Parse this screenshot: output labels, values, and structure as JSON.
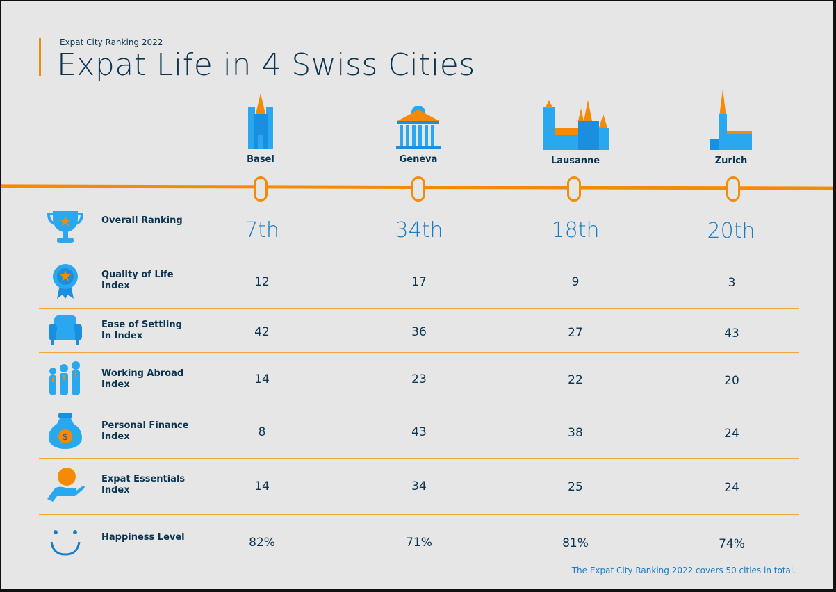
{
  "header": {
    "subtitle": "Expat City Ranking 2022",
    "title": "Expat Life in 4 Swiss Cities"
  },
  "colors": {
    "accent": "#f58a07",
    "primary_blue": "#1a7dc4",
    "icon_blue": "#29a8f0",
    "text": "#0b3550"
  },
  "cities": [
    {
      "name": "Basel",
      "icon": "basel-cathedral-icon"
    },
    {
      "name": "Geneva",
      "icon": "geneva-temple-icon"
    },
    {
      "name": "Lausanne",
      "icon": "lausanne-cathedral-icon"
    },
    {
      "name": "Zurich",
      "icon": "zurich-church-icon"
    }
  ],
  "rows": [
    {
      "label": "Overall Ranking",
      "icon": "trophy-icon",
      "values": [
        "7th",
        "34th",
        "18th",
        "20th"
      ]
    },
    {
      "label": "Quality of Life Index",
      "icon": "award-rosette-icon",
      "values": [
        "12",
        "17",
        "9",
        "3"
      ]
    },
    {
      "label": "Ease of Settling In Index",
      "icon": "armchair-icon",
      "values": [
        "42",
        "36",
        "27",
        "43"
      ]
    },
    {
      "label": "Working Abroad Index",
      "icon": "people-icon",
      "values": [
        "14",
        "23",
        "22",
        "20"
      ]
    },
    {
      "label": "Personal Finance Index",
      "icon": "money-bag-icon",
      "values": [
        "8",
        "43",
        "38",
        "24"
      ]
    },
    {
      "label": "Expat Essentials Index",
      "icon": "hand-coin-icon",
      "values": [
        "14",
        "34",
        "25",
        "24"
      ]
    },
    {
      "label": "Happiness Level",
      "icon": "smile-icon",
      "values": [
        "82%",
        "71%",
        "81%",
        "74%"
      ]
    }
  ],
  "footer": "The Expat City Ranking 2022 covers 50 cities in total."
}
